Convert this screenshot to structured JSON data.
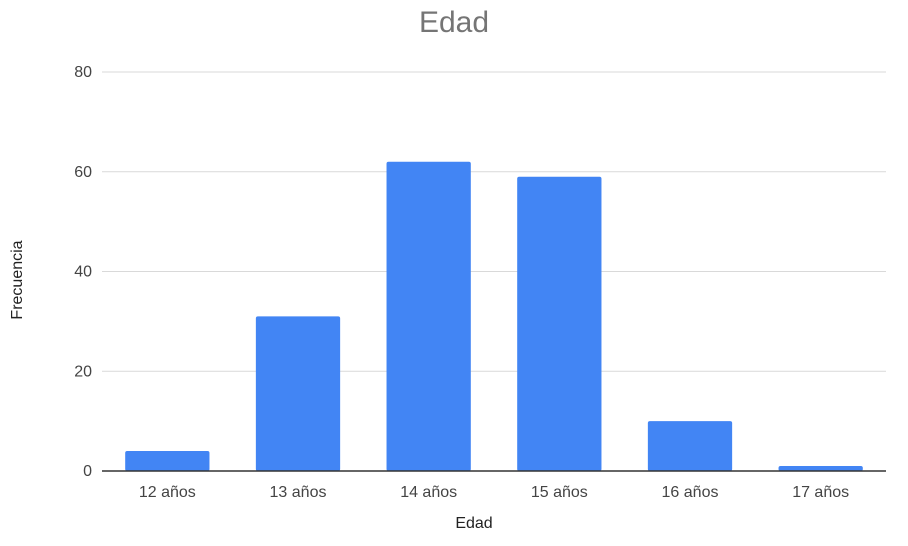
{
  "chart_data": {
    "type": "bar",
    "title": "Edad",
    "xlabel": "Edad",
    "ylabel": "Frecuencia",
    "categories": [
      "12 años",
      "13 años",
      "14 años",
      "15 años",
      "16 años",
      "17 años"
    ],
    "values": [
      4,
      31,
      62,
      59,
      10,
      1
    ],
    "ylim": [
      0,
      80
    ],
    "yticks": [
      "0",
      "20",
      "40",
      "60",
      "80"
    ],
    "grid": true,
    "legend": "none",
    "colors": {
      "bar": "#4285f4",
      "grid": "#d9d9d9",
      "axis": "#333333"
    }
  }
}
